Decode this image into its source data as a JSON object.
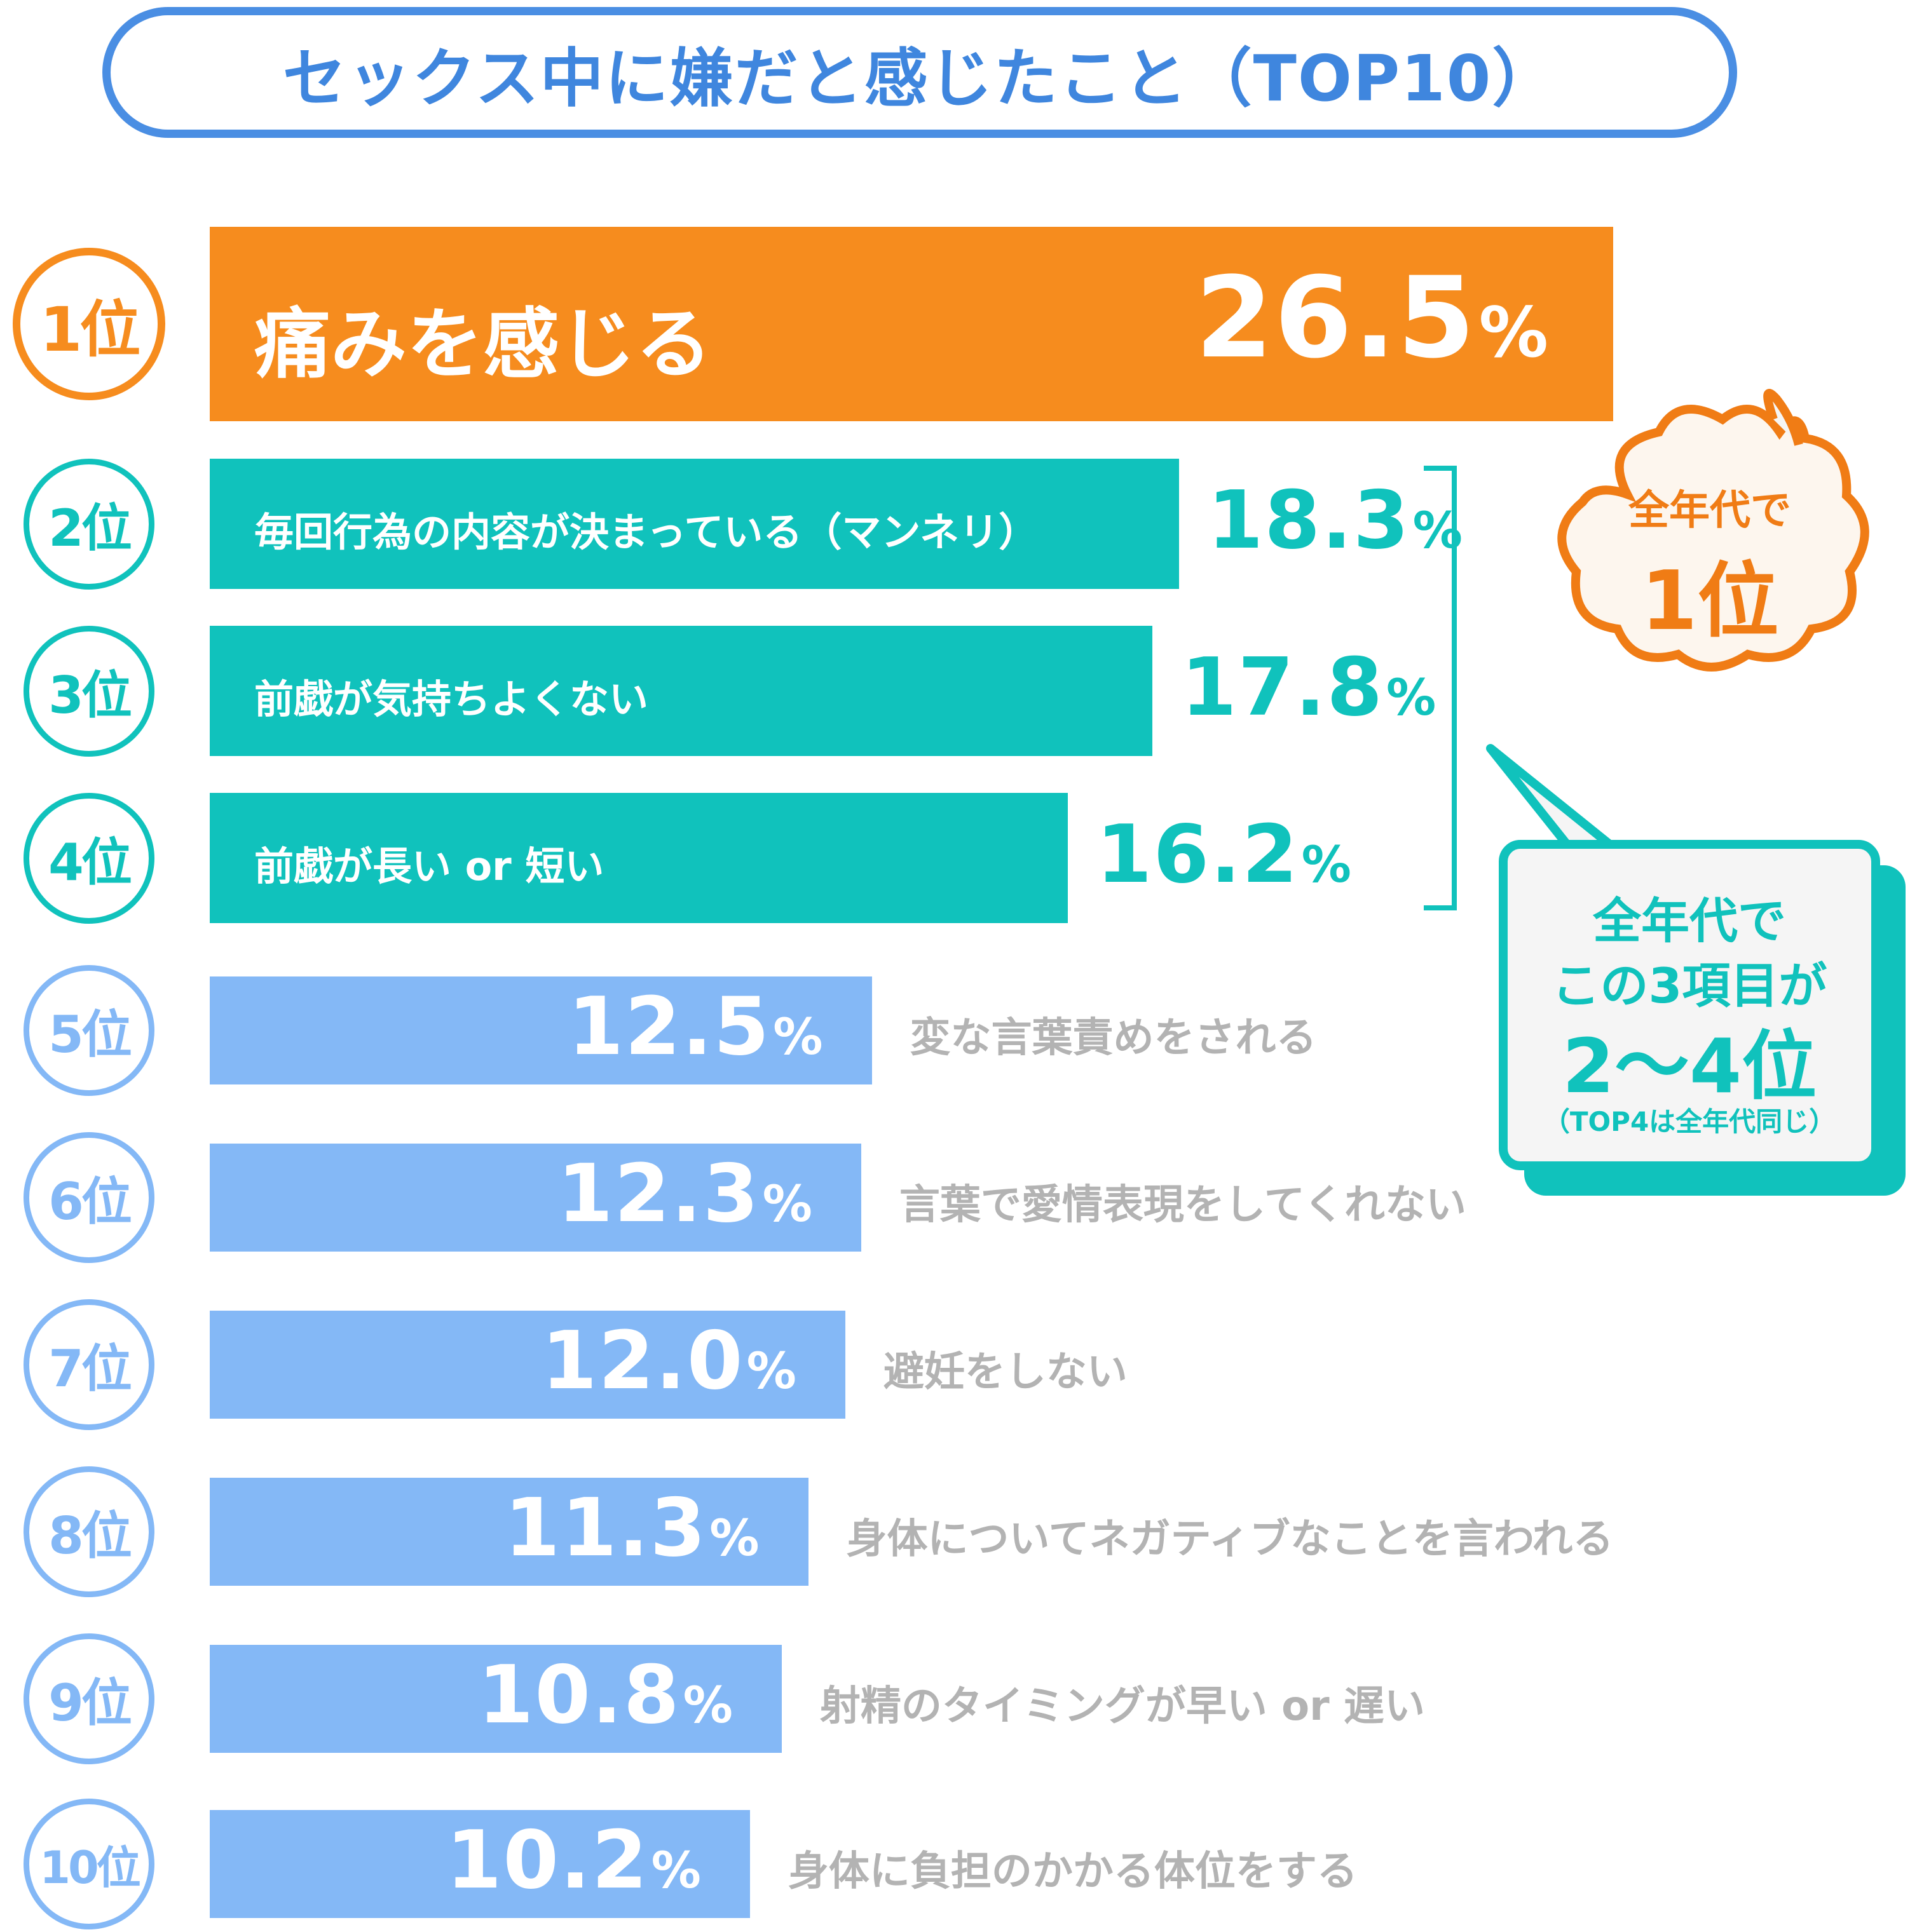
{
  "title": "セックス中に嫌だと感じたこと（TOP10）",
  "colors": {
    "orange": "#f68c1e",
    "teal": "#10c2bc",
    "light_blue": "#84b8f6",
    "title_blue": "#4a8ee3",
    "gray_text": "#b3b3b3"
  },
  "chart_data": {
    "type": "bar",
    "orientation": "horizontal",
    "title": "セックス中に嫌だと感じたこと（TOP10）",
    "unit": "%",
    "categories": [
      "痛みを感じる",
      "毎回行為の内容が決まっている（マンネリ）",
      "前戯が気持ちよくない",
      "前戯が長い or 短い",
      "変な言葉責めをされる",
      "言葉で愛情表現をしてくれない",
      "避妊をしない",
      "身体についてネガティブなことを言われる",
      "射精のタイミングが早い or 遅い",
      "身体に負担のかかる体位をする"
    ],
    "ranks": [
      "1位",
      "2位",
      "3位",
      "4位",
      "5位",
      "6位",
      "7位",
      "8位",
      "9位",
      "10位"
    ],
    "values": [
      26.5,
      18.3,
      17.8,
      16.2,
      12.5,
      12.3,
      12.0,
      11.3,
      10.8,
      10.2
    ],
    "value_labels": [
      "26.5",
      "18.3",
      "17.8",
      "16.2",
      "12.5",
      "12.3",
      "12.0",
      "11.3",
      "10.8",
      "10.2"
    ]
  },
  "annotations": {
    "cloud_line1": "全年代で",
    "cloud_line2": "1位",
    "callout_line1": "全年代で",
    "callout_line2": "この3項目が",
    "callout_line3": "2〜4位",
    "callout_line4": "（TOP4は全年代同じ）"
  }
}
